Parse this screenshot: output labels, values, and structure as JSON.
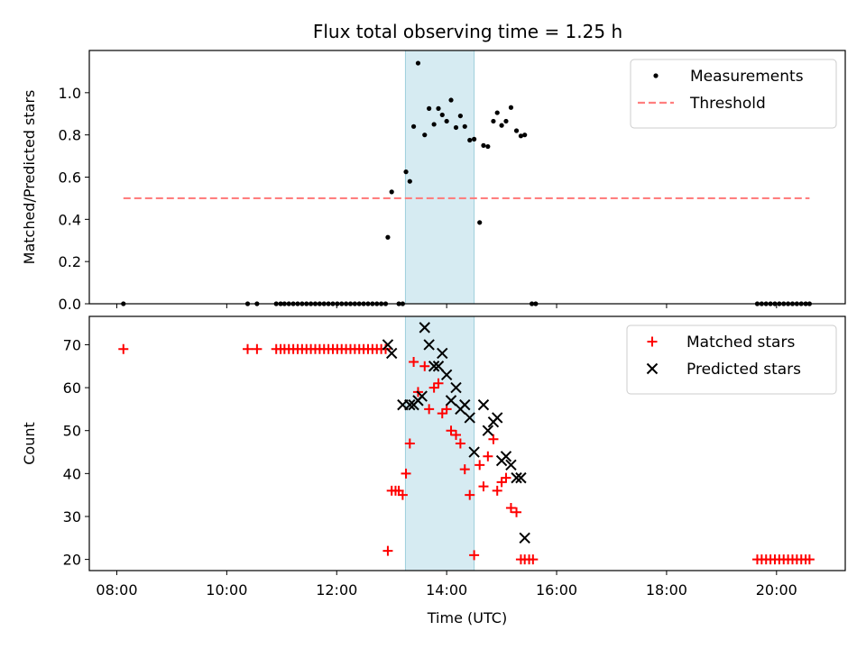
{
  "figure": {
    "title": "Flux total observing time = 1.25 h"
  },
  "chart_data": [
    {
      "type": "scatter",
      "panel": "top",
      "ylabel": "Matched/Predicted stars",
      "xlabel": "",
      "xlim": [
        7.5,
        21.25
      ],
      "ylim": [
        0,
        1.2
      ],
      "yticks": [
        0.0,
        0.2,
        0.4,
        0.6,
        0.8,
        1.0
      ],
      "ytick_labels": [
        "0.0",
        "0.2",
        "0.4",
        "0.6",
        "0.8",
        "1.0"
      ],
      "xticks": [
        8,
        10,
        12,
        14,
        16,
        18,
        20
      ],
      "shaded_x_range": [
        13.25,
        14.5
      ],
      "legend_position": "upper-right",
      "grid": false,
      "series": [
        {
          "name": "Measurements",
          "marker": "dot",
          "color": "#000000",
          "x": [
            8.12,
            10.38,
            10.55,
            10.9,
            10.98,
            11.05,
            11.13,
            11.21,
            11.29,
            11.37,
            11.45,
            11.53,
            11.61,
            11.69,
            11.77,
            11.85,
            11.93,
            12.01,
            12.09,
            12.17,
            12.25,
            12.33,
            12.41,
            12.49,
            12.57,
            12.65,
            12.73,
            12.81,
            12.89,
            12.93,
            13.0,
            13.13,
            13.2,
            13.26,
            13.33,
            13.4,
            13.48,
            13.6,
            13.68,
            13.77,
            13.85,
            13.92,
            14.0,
            14.08,
            14.17,
            14.25,
            14.33,
            14.42,
            14.5,
            14.6,
            14.67,
            14.75,
            14.85,
            14.92,
            15.0,
            15.08,
            15.17,
            15.27,
            15.35,
            15.42,
            15.55,
            15.62,
            19.65,
            19.73,
            19.81,
            19.89,
            19.97,
            20.05,
            20.13,
            20.21,
            20.29,
            20.37,
            20.45,
            20.53,
            20.6
          ],
          "y": [
            0.0,
            0.0,
            0.0,
            0.0,
            0.0,
            0.0,
            0.0,
            0.0,
            0.0,
            0.0,
            0.0,
            0.0,
            0.0,
            0.0,
            0.0,
            0.0,
            0.0,
            0.0,
            0.0,
            0.0,
            0.0,
            0.0,
            0.0,
            0.0,
            0.0,
            0.0,
            0.0,
            0.0,
            0.0,
            0.315,
            0.53,
            0.0,
            0.0,
            0.625,
            0.58,
            0.84,
            1.14,
            0.8,
            0.925,
            0.85,
            0.925,
            0.895,
            0.865,
            0.965,
            0.835,
            0.89,
            0.84,
            0.775,
            0.78,
            0.385,
            0.75,
            0.745,
            0.865,
            0.905,
            0.845,
            0.865,
            0.93,
            0.82,
            0.795,
            0.8,
            0.0,
            0.0,
            0.0,
            0.0,
            0.0,
            0.0,
            0.0,
            0.0,
            0.0,
            0.0,
            0.0,
            0.0,
            0.0,
            0.0,
            0.0
          ]
        },
        {
          "name": "Threshold",
          "marker": "dashed-line",
          "color": "#ff7f7f",
          "x": [
            8.12,
            20.6
          ],
          "y": [
            0.5,
            0.5
          ]
        }
      ]
    },
    {
      "type": "scatter",
      "panel": "bottom",
      "ylabel": "Count",
      "xlabel": "Time (UTC)",
      "xlim": [
        7.5,
        21.25
      ],
      "ylim": [
        17.4,
        76.6
      ],
      "yticks": [
        20,
        30,
        40,
        50,
        60,
        70
      ],
      "ytick_labels": [
        "20",
        "30",
        "40",
        "50",
        "60",
        "70"
      ],
      "xticks": [
        8,
        10,
        12,
        14,
        16,
        18,
        20
      ],
      "xtick_labels": [
        "08:00",
        "10:00",
        "12:00",
        "14:00",
        "16:00",
        "18:00",
        "20:00"
      ],
      "shaded_x_range": [
        13.25,
        14.5
      ],
      "legend_position": "upper-right",
      "grid": false,
      "series": [
        {
          "name": "Matched stars",
          "marker": "plus",
          "color": "#ff0000",
          "x": [
            8.12,
            10.38,
            10.55,
            10.9,
            10.98,
            11.05,
            11.13,
            11.21,
            11.29,
            11.37,
            11.45,
            11.53,
            11.61,
            11.69,
            11.77,
            11.85,
            11.93,
            12.01,
            12.09,
            12.17,
            12.25,
            12.33,
            12.41,
            12.49,
            12.57,
            12.65,
            12.73,
            12.81,
            12.89,
            12.93,
            13.0,
            13.07,
            13.13,
            13.2,
            13.26,
            13.33,
            13.4,
            13.48,
            13.6,
            13.68,
            13.77,
            13.85,
            13.92,
            14.0,
            14.08,
            14.17,
            14.25,
            14.33,
            14.42,
            14.5,
            14.6,
            14.67,
            14.75,
            14.85,
            14.92,
            15.0,
            15.08,
            15.17,
            15.27,
            15.35,
            15.42,
            15.5,
            15.57,
            19.65,
            19.73,
            19.81,
            19.89,
            19.97,
            20.05,
            20.13,
            20.21,
            20.29,
            20.37,
            20.45,
            20.53,
            20.6
          ],
          "y": [
            69,
            69,
            69,
            69,
            69,
            69,
            69,
            69,
            69,
            69,
            69,
            69,
            69,
            69,
            69,
            69,
            69,
            69,
            69,
            69,
            69,
            69,
            69,
            69,
            69,
            69,
            69,
            69,
            69,
            22,
            36,
            36,
            36,
            35,
            40,
            47,
            66,
            59,
            65,
            55,
            60,
            61,
            54,
            55,
            50,
            49,
            47,
            41,
            35,
            21,
            42,
            37,
            44,
            48,
            36,
            38,
            39,
            32,
            31,
            20,
            20,
            20,
            20,
            20,
            20,
            20,
            20,
            20,
            20,
            20,
            20,
            20,
            20,
            20,
            20,
            20
          ]
        },
        {
          "name": "Predicted stars",
          "marker": "x",
          "color": "#000000",
          "x": [
            12.93,
            13.0,
            13.2,
            13.33,
            13.4,
            13.48,
            13.55,
            13.6,
            13.68,
            13.77,
            13.85,
            13.92,
            14.0,
            14.08,
            14.17,
            14.25,
            14.33,
            14.42,
            14.5,
            14.67,
            14.75,
            14.85,
            14.92,
            15.0,
            15.08,
            15.17,
            15.27,
            15.35,
            15.42
          ],
          "y": [
            70,
            68,
            56,
            56,
            56,
            57,
            58,
            74,
            70,
            65,
            65,
            68,
            63,
            57,
            60,
            55,
            56,
            53,
            45,
            56,
            50,
            52,
            53,
            43,
            44,
            42,
            39,
            39,
            25
          ]
        }
      ]
    }
  ]
}
